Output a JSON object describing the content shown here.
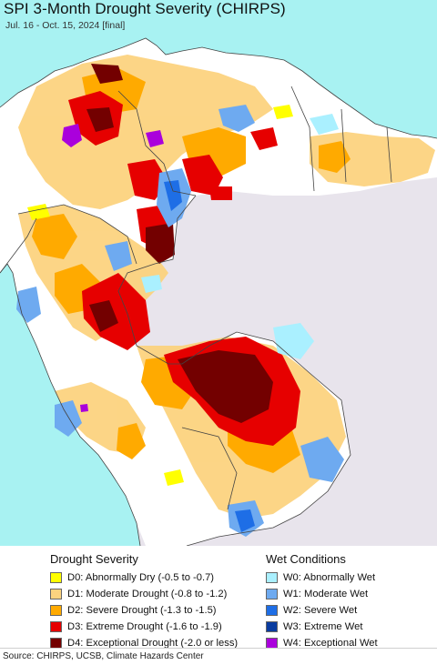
{
  "header": {
    "title": "SPI 3-Month Drought Severity (CHIRPS)",
    "subtitle": "Jul. 16 - Oct. 15, 2024 [final]"
  },
  "map": {
    "ocean_color": "#a8f2f2",
    "land_outside_color": "#e8e4ec",
    "normal_color": "#ffffff",
    "border_color": "#444444"
  },
  "legend": {
    "drought_heading": "Drought Severity",
    "wet_heading": "Wet Conditions",
    "drought_items": [
      {
        "code": "D0",
        "label": "D0: Abnormally Dry (-0.5 to -0.7)",
        "color": "#ffff00"
      },
      {
        "code": "D1",
        "label": "D1: Moderate Drought (-0.8 to -1.2)",
        "color": "#fcd37f"
      },
      {
        "code": "D2",
        "label": "D2: Severe Drought (-1.3 to -1.5)",
        "color": "#ffaa00"
      },
      {
        "code": "D3",
        "label": "D3: Extreme Drought (-1.6 to -1.9)",
        "color": "#e60000"
      },
      {
        "code": "D4",
        "label": "D4: Exceptional Drought (-2.0 or less)",
        "color": "#730000"
      }
    ],
    "wet_items": [
      {
        "code": "W0",
        "label": "W0: Abnormally Wet",
        "color": "#aaf0ff"
      },
      {
        "code": "W1",
        "label": "W1: Moderate Wet",
        "color": "#6eaaf0"
      },
      {
        "code": "W2",
        "label": "W2: Severe Wet",
        "color": "#1e6ee6"
      },
      {
        "code": "W3",
        "label": "W3: Extreme Wet",
        "color": "#0a3ca0"
      },
      {
        "code": "W4",
        "label": "W4: Exceptional Wet",
        "color": "#aa00dc"
      }
    ]
  },
  "footer": {
    "source": "Source: CHIRPS, UCSB, Climate Hazards Center"
  }
}
